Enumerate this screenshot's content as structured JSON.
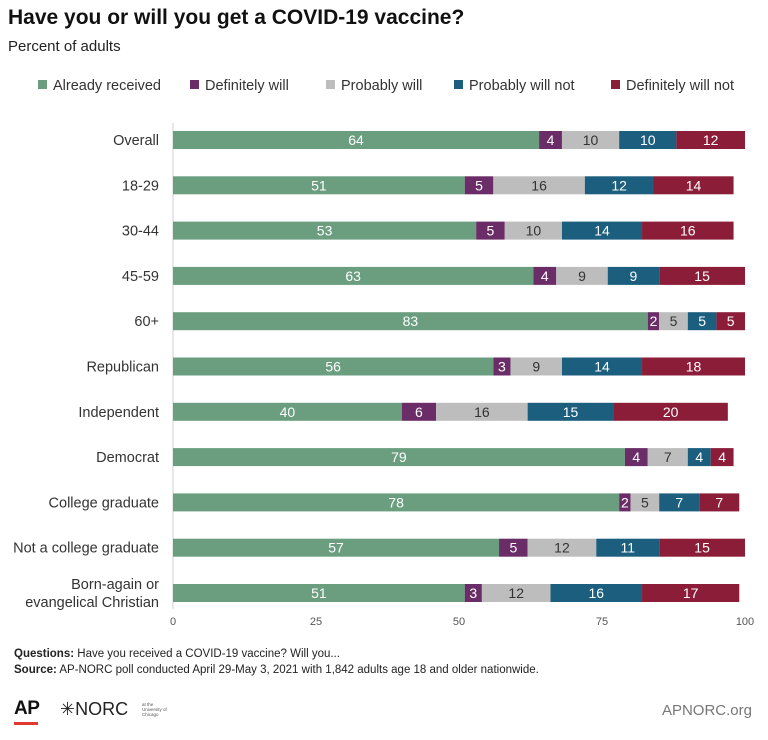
{
  "title": "Have you or will you get a COVID-19 vaccine?",
  "subtitle": "Percent of adults",
  "colors": {
    "already": "#6a9e7f",
    "definitely": "#6b2d67",
    "probably": "#bdbdbd",
    "probably_not": "#1b5e7e",
    "definitely_not": "#8c1d38"
  },
  "chart_data": {
    "type": "bar",
    "orientation": "horizontal",
    "stacked": true,
    "categories": [
      "Overall",
      "18-29",
      "30-44",
      "45-59",
      "60+",
      "Republican",
      "Independent",
      "Democrat",
      "College graduate",
      "Not a college graduate",
      "Born-again or\nevangelical Christian"
    ],
    "series": [
      {
        "name": "Already received",
        "color": "#6a9e7f",
        "values": [
          64,
          51,
          53,
          63,
          83,
          56,
          40,
          79,
          78,
          57,
          51
        ]
      },
      {
        "name": "Definitely will",
        "color": "#6b2d67",
        "values": [
          4,
          5,
          5,
          4,
          2,
          3,
          6,
          4,
          2,
          5,
          3
        ]
      },
      {
        "name": "Probably will",
        "color": "#bdbdbd",
        "values": [
          10,
          16,
          10,
          9,
          5,
          9,
          16,
          7,
          5,
          12,
          12
        ]
      },
      {
        "name": "Probably will not",
        "color": "#1b5e7e",
        "values": [
          10,
          12,
          14,
          9,
          5,
          14,
          15,
          4,
          7,
          11,
          16
        ]
      },
      {
        "name": "Definitely will not",
        "color": "#8c1d38",
        "values": [
          12,
          14,
          16,
          15,
          5,
          18,
          20,
          4,
          7,
          15,
          17
        ]
      }
    ],
    "xlim": [
      0,
      100
    ],
    "xticks": [
      0,
      25,
      50,
      75,
      100
    ],
    "legend_position": "top",
    "grid": false
  },
  "footer": {
    "questions_label": "Questions:",
    "questions_text": " Have you received a COVID-19 vaccine? Will you...",
    "source_label": "Source:",
    "source_text": " AP-NORC poll conducted April 29-May 3, 2021 with 1,842 adults age 18 and older nationwide."
  },
  "logos": {
    "ap": "AP",
    "norc": "✳NORC",
    "norc_sub": "at the University of Chicago"
  },
  "site": "APNORC.org"
}
